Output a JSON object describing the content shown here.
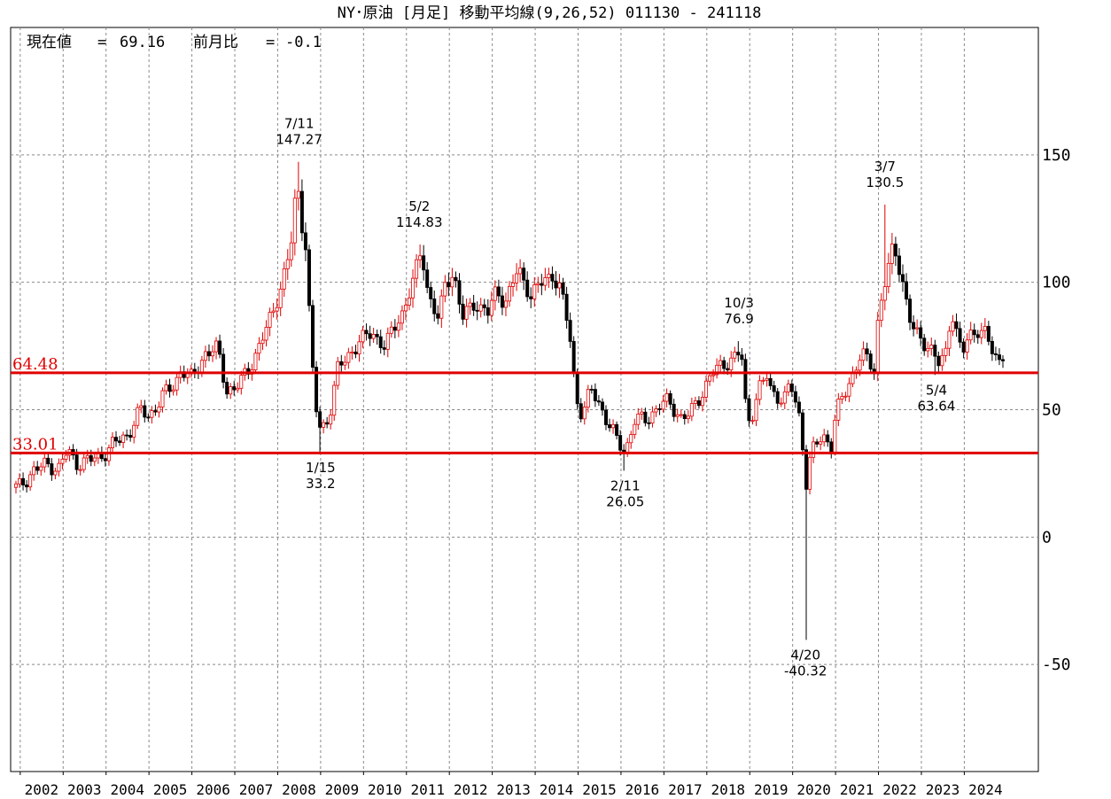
{
  "chart_data": {
    "type": "candlestick",
    "title": "NY･原油 [月足]  移動平均線(9,26,52)  011130 - 241118",
    "info": {
      "current_label": "現在値",
      "current_value": "69.16",
      "change_label": "前月比",
      "change_value": "-0.1"
    },
    "ylim": [
      -92,
      200
    ],
    "y_ticks": [
      150,
      100,
      50,
      0,
      -50
    ],
    "x_ticks": [
      "2002",
      "2003",
      "2004",
      "2005",
      "2006",
      "2007",
      "2008",
      "2009",
      "2010",
      "2011",
      "2012",
      "2013",
      "2014",
      "2015",
      "2016",
      "2017",
      "2018",
      "2019",
      "2020",
      "2021",
      "2022",
      "2023",
      "2024"
    ],
    "x_start_year": 2001.9,
    "x_end_year": 2024.9,
    "grid": true,
    "horizontal_lines": [
      {
        "value": 64.48,
        "label": "64.48",
        "color": "#e00000"
      },
      {
        "value": 33.01,
        "label": "33.01",
        "color": "#e00000"
      }
    ],
    "annotations": [
      {
        "date": "7/11",
        "value": "147.27",
        "year": 2008.5,
        "price": 147.27,
        "pos": "above"
      },
      {
        "date": "1/15",
        "value": "33.2",
        "year": 2009.0,
        "price": 33.2,
        "pos": "below"
      },
      {
        "date": "5/2",
        "value": "114.83",
        "year": 2011.3,
        "price": 114.83,
        "pos": "above"
      },
      {
        "date": "2/11",
        "value": "26.05",
        "year": 2016.1,
        "price": 26.05,
        "pos": "below"
      },
      {
        "date": "10/3",
        "value": "76.9",
        "year": 2018.75,
        "price": 76.9,
        "pos": "above"
      },
      {
        "date": "4/20",
        "value": "-40.32",
        "year": 2020.3,
        "price": -40.32,
        "pos": "below"
      },
      {
        "date": "3/7",
        "value": "130.5",
        "year": 2022.15,
        "price": 130.5,
        "pos": "above"
      },
      {
        "date": "5/4",
        "value": "63.64",
        "year": 2023.35,
        "price": 63.64,
        "pos": "below"
      }
    ],
    "monthly_close_anchors": [
      [
        2001.9,
        19.5
      ],
      [
        2002.0,
        20.0
      ],
      [
        2002.3,
        26.0
      ],
      [
        2002.6,
        28.5
      ],
      [
        2002.9,
        27.0
      ],
      [
        2003.1,
        34.0
      ],
      [
        2003.3,
        29.0
      ],
      [
        2003.6,
        30.0
      ],
      [
        2003.9,
        32.0
      ],
      [
        2004.2,
        37.0
      ],
      [
        2004.5,
        40.0
      ],
      [
        2004.8,
        50.0
      ],
      [
        2005.0,
        47.0
      ],
      [
        2005.3,
        55.0
      ],
      [
        2005.6,
        60.0
      ],
      [
        2005.75,
        66.0
      ],
      [
        2006.0,
        62.0
      ],
      [
        2006.3,
        72.0
      ],
      [
        2006.6,
        74.0
      ],
      [
        2006.8,
        58.0
      ],
      [
        2007.0,
        58.0
      ],
      [
        2007.3,
        65.0
      ],
      [
        2007.6,
        76.0
      ],
      [
        2007.9,
        89.0
      ],
      [
        2008.1,
        100.0
      ],
      [
        2008.3,
        113.0
      ],
      [
        2008.45,
        140.0
      ],
      [
        2008.55,
        124.0
      ],
      [
        2008.65,
        115.0
      ],
      [
        2008.8,
        68.0
      ],
      [
        2008.9,
        50.0
      ],
      [
        2009.0,
        41.0
      ],
      [
        2009.2,
        48.0
      ],
      [
        2009.4,
        66.0
      ],
      [
        2009.6,
        70.0
      ],
      [
        2009.9,
        77.0
      ],
      [
        2010.2,
        80.0
      ],
      [
        2010.5,
        75.0
      ],
      [
        2010.9,
        88.0
      ],
      [
        2011.15,
        100.0
      ],
      [
        2011.35,
        113.0
      ],
      [
        2011.5,
        96.0
      ],
      [
        2011.75,
        85.0
      ],
      [
        2011.9,
        99.0
      ],
      [
        2012.1,
        104.0
      ],
      [
        2012.3,
        86.0
      ],
      [
        2012.6,
        92.0
      ],
      [
        2012.9,
        88.0
      ],
      [
        2013.1,
        97.0
      ],
      [
        2013.3,
        92.0
      ],
      [
        2013.6,
        105.0
      ],
      [
        2013.9,
        95.0
      ],
      [
        2014.1,
        99.0
      ],
      [
        2014.4,
        103.0
      ],
      [
        2014.6,
        97.0
      ],
      [
        2014.8,
        80.0
      ],
      [
        2014.95,
        55.0
      ],
      [
        2015.1,
        48.0
      ],
      [
        2015.3,
        58.0
      ],
      [
        2015.5,
        52.0
      ],
      [
        2015.7,
        45.0
      ],
      [
        2015.9,
        38.0
      ],
      [
        2016.1,
        33.0
      ],
      [
        2016.3,
        46.0
      ],
      [
        2016.6,
        46.0
      ],
      [
        2016.9,
        52.0
      ],
      [
        2017.1,
        53.0
      ],
      [
        2017.4,
        47.0
      ],
      [
        2017.6,
        48.0
      ],
      [
        2017.9,
        57.0
      ],
      [
        2018.1,
        64.0
      ],
      [
        2018.4,
        68.0
      ],
      [
        2018.6,
        70.0
      ],
      [
        2018.8,
        73.0
      ],
      [
        2018.9,
        52.0
      ],
      [
        2019.0,
        45.0
      ],
      [
        2019.2,
        58.0
      ],
      [
        2019.4,
        63.0
      ],
      [
        2019.5,
        57.0
      ],
      [
        2019.8,
        54.0
      ],
      [
        2019.95,
        60.0
      ],
      [
        2020.1,
        51.0
      ],
      [
        2020.2,
        44.0
      ],
      [
        2020.3,
        20.0
      ],
      [
        2020.4,
        30.0
      ],
      [
        2020.5,
        35.0
      ],
      [
        2020.7,
        40.0
      ],
      [
        2020.9,
        36.0
      ],
      [
        2021.0,
        48.0
      ],
      [
        2021.3,
        60.0
      ],
      [
        2021.6,
        72.0
      ],
      [
        2021.9,
        66.0
      ],
      [
        2022.0,
        88.0
      ],
      [
        2022.15,
        100.0
      ],
      [
        2022.35,
        114.0
      ],
      [
        2022.5,
        105.0
      ],
      [
        2022.6,
        98.0
      ],
      [
        2022.7,
        87.0
      ],
      [
        2022.85,
        80.0
      ],
      [
        2023.0,
        77.0
      ],
      [
        2023.2,
        75.0
      ],
      [
        2023.4,
        68.0
      ],
      [
        2023.55,
        70.0
      ],
      [
        2023.7,
        90.0
      ],
      [
        2023.85,
        78.0
      ],
      [
        2023.95,
        72.0
      ],
      [
        2024.1,
        78.0
      ],
      [
        2024.3,
        82.0
      ],
      [
        2024.5,
        80.0
      ],
      [
        2024.7,
        70.0
      ],
      [
        2024.9,
        69.16
      ]
    ]
  }
}
